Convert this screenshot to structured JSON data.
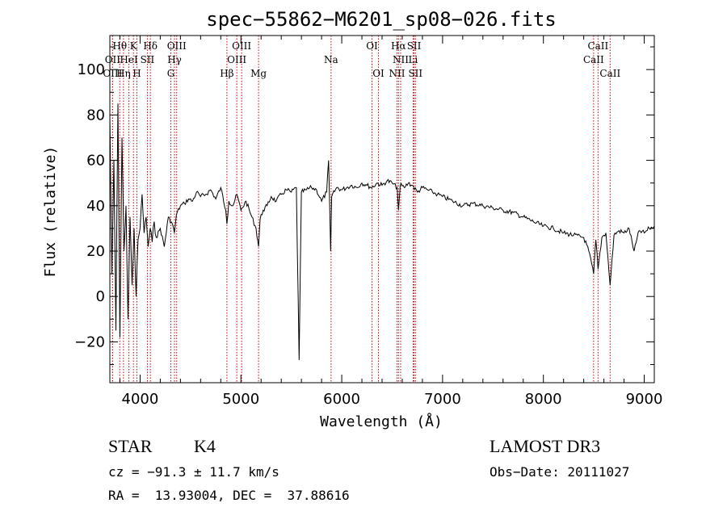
{
  "chart_data": {
    "type": "line",
    "title": "spec−55862−M6201_sp08−026.fits",
    "xlabel": "Wavelength (Å)",
    "ylabel": "Flux (relative)",
    "xlim": [
      3700,
      9100
    ],
    "ylim": [
      -38,
      115
    ],
    "xticks": [
      4000,
      5000,
      6000,
      7000,
      8000,
      9000
    ],
    "xtick_labels": [
      "4000",
      "5000",
      "6000",
      "7000",
      "8000",
      "9000"
    ],
    "yticks": [
      -20,
      0,
      20,
      40,
      60,
      80,
      100
    ],
    "ytick_labels": [
      "−20",
      "0",
      "20",
      "40",
      "60",
      "80",
      "100"
    ],
    "series": [
      {
        "name": "flux",
        "x": [
          3700,
          3720,
          3740,
          3760,
          3780,
          3800,
          3820,
          3840,
          3860,
          3880,
          3900,
          3920,
          3940,
          3960,
          3980,
          4000,
          4020,
          4040,
          4060,
          4080,
          4100,
          4120,
          4140,
          4160,
          4200,
          4240,
          4280,
          4320,
          4340,
          4360,
          4400,
          4440,
          4480,
          4520,
          4560,
          4600,
          4650,
          4700,
          4750,
          4800,
          4850,
          4861,
          4880,
          4920,
          4960,
          5000,
          5050,
          5100,
          5150,
          5175,
          5190,
          5220,
          5260,
          5300,
          5350,
          5400,
          5450,
          5500,
          5550,
          5577,
          5600,
          5650,
          5700,
          5750,
          5800,
          5850,
          5870,
          5890,
          5900,
          5950,
          6000,
          6050,
          6100,
          6150,
          6200,
          6250,
          6300,
          6350,
          6400,
          6450,
          6500,
          6550,
          6563,
          6580,
          6620,
          6660,
          6700,
          6750,
          6800,
          6850,
          6900,
          6950,
          7000,
          7100,
          7200,
          7300,
          7400,
          7500,
          7600,
          7700,
          7800,
          7900,
          8000,
          8100,
          8200,
          8300,
          8400,
          8450,
          8498,
          8520,
          8542,
          8580,
          8620,
          8662,
          8700,
          8750,
          8800,
          8850,
          8900,
          8950,
          9000,
          9050,
          9100
        ],
        "values": [
          80,
          10,
          60,
          -15,
          85,
          -18,
          70,
          20,
          40,
          -10,
          35,
          5,
          30,
          0,
          25,
          30,
          45,
          28,
          35,
          22,
          30,
          24,
          33,
          26,
          30,
          22,
          35,
          32,
          28,
          36,
          40,
          41,
          43,
          42,
          46,
          44,
          45,
          47,
          43,
          48,
          38,
          32,
          42,
          40,
          45,
          38,
          42,
          36,
          30,
          22,
          34,
          38,
          40,
          44,
          42,
          45,
          47,
          46,
          48,
          -28,
          46,
          47,
          48,
          47,
          42,
          46,
          60,
          20,
          44,
          48,
          47,
          48,
          49,
          48,
          50,
          49,
          48,
          50,
          49,
          51,
          50,
          48,
          38,
          49,
          48,
          50,
          49,
          46,
          48,
          47,
          46,
          45,
          44,
          42,
          40,
          41,
          40,
          39,
          38,
          37,
          35,
          33,
          31,
          30,
          28,
          27,
          26,
          20,
          10,
          25,
          12,
          26,
          28,
          5,
          27,
          29,
          28,
          30,
          20,
          29,
          28,
          30,
          31
        ]
      }
    ],
    "spectral_lines": [
      {
        "label": "Hθ",
        "wave": 3798,
        "row": 1
      },
      {
        "label": "OII",
        "wave": 3727,
        "row": 2
      },
      {
        "label": "OIII",
        "wave": 3727,
        "row": 3
      },
      {
        "label": "K",
        "wave": 3934,
        "row": 1
      },
      {
        "label": "HeI",
        "wave": 3889,
        "row": 2
      },
      {
        "label": "Hη",
        "wave": 3835,
        "row": 3
      },
      {
        "label": "Hδ",
        "wave": 4102,
        "row": 1
      },
      {
        "label": "SII",
        "wave": 4072,
        "row": 2
      },
      {
        "label": "H",
        "wave": 3968,
        "row": 3
      },
      {
        "label": "OIII",
        "wave": 4363,
        "row": 1
      },
      {
        "label": "Hγ",
        "wave": 4341,
        "row": 2
      },
      {
        "label": "G",
        "wave": 4305,
        "row": 3
      },
      {
        "label": "OIII",
        "wave": 5007,
        "row": 1
      },
      {
        "label": "OIII",
        "wave": 4959,
        "row": 2
      },
      {
        "label": "Hβ",
        "wave": 4861,
        "row": 3
      },
      {
        "label": "Mg",
        "wave": 5175,
        "row": 3
      },
      {
        "label": "Na",
        "wave": 5894,
        "row": 2
      },
      {
        "label": "OI",
        "wave": 6300,
        "row": 1
      },
      {
        "label": "OI",
        "wave": 6364,
        "row": 3
      },
      {
        "label": "Hα",
        "wave": 6563,
        "row": 1
      },
      {
        "label": "NII",
        "wave": 6584,
        "row": 2
      },
      {
        "label": "NII",
        "wave": 6548,
        "row": 3
      },
      {
        "label": "SII",
        "wave": 6717,
        "row": 1
      },
      {
        "label": "Li",
        "wave": 6708,
        "row": 2
      },
      {
        "label": "SII",
        "wave": 6731,
        "row": 3
      },
      {
        "label": "CaII",
        "wave": 8542,
        "row": 1
      },
      {
        "label": "CaII",
        "wave": 8498,
        "row": 2
      },
      {
        "label": "CaII",
        "wave": 8662,
        "row": 3
      }
    ],
    "colors": {
      "line": "#000000",
      "marker": "#cc0000"
    }
  },
  "info": {
    "class": "STAR",
    "subclass": "K4",
    "survey": "LAMOST DR3",
    "cz": "cz = −91.3 ± 11.7 km/s",
    "obs_date": "Obs−Date: 20111027",
    "radec": "RA =  13.93004, DEC =  37.88616"
  }
}
